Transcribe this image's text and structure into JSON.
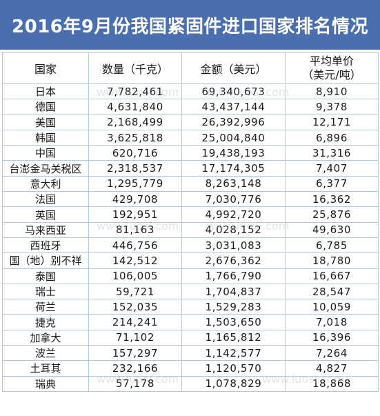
{
  "title": "2016年9月份我国紧固件进口国家排名情况",
  "watermark": "www.luosi.com",
  "colors": {
    "title_bg": "#4a6fb0",
    "title_text": "#ffffff",
    "grid": "#b8c8dc"
  },
  "headers": [
    "国家",
    "数量（千克）",
    "金额（美元）",
    "平均单价\n（美元/吨）"
  ],
  "rows": [
    [
      "日本",
      "7,782,461",
      "69,340,673",
      "8,910"
    ],
    [
      "德国",
      "4,631,840",
      "43,437,144",
      "9,378"
    ],
    [
      "美国",
      "2,168,499",
      "26,392,996",
      "12,171"
    ],
    [
      "韩国",
      "3,625,818",
      "25,004,840",
      "6,896"
    ],
    [
      "中国",
      "620,716",
      "19,438,193",
      "31,316"
    ],
    [
      "台澎金马关税区",
      "2,318,537",
      "17,174,305",
      "7,407"
    ],
    [
      "意大利",
      "1,295,779",
      "8,263,148",
      "6,377"
    ],
    [
      "法国",
      "429,708",
      "7,030,776",
      "16,362"
    ],
    [
      "英国",
      "192,951",
      "4,992,720",
      "25,876"
    ],
    [
      "马来西亚",
      "81,163",
      "4,028,152",
      "49,630"
    ],
    [
      "西班牙",
      "446,756",
      "3,031,083",
      "6,785"
    ],
    [
      "国（地）别不祥",
      "142,512",
      "2,676,362",
      "18,780"
    ],
    [
      "泰国",
      "106,005",
      "1,766,790",
      "16,667"
    ],
    [
      "瑞士",
      "59,721",
      "1,704,837",
      "28,547"
    ],
    [
      "荷兰",
      "152,035",
      "1,529,283",
      "10,059"
    ],
    [
      "捷克",
      "214,241",
      "1,503,650",
      "7,018"
    ],
    [
      "加拿大",
      "71,102",
      "1,165,812",
      "16,396"
    ],
    [
      "波兰",
      "157,297",
      "1,142,577",
      "7,264"
    ],
    [
      "土耳其",
      "232,166",
      "1,120,570",
      "4,827"
    ],
    [
      "瑞典",
      "57,178",
      "1,078,829",
      "18,868"
    ]
  ]
}
